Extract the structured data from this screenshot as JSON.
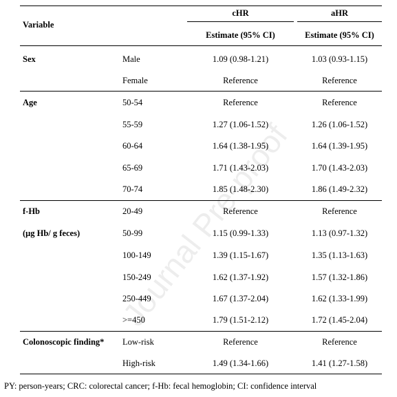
{
  "table": {
    "header": {
      "variable": "Variable",
      "chr": "cHR",
      "ahr": "aHR",
      "estimate_chr": "Estimate (95% CI)",
      "estimate_ahr": "Estimate (95% CI)"
    },
    "rows": [
      {
        "variable": "Sex",
        "level": "Male",
        "chr": "1.09 (0.98-1.21)",
        "ahr": "1.03 (0.93-1.15)"
      },
      {
        "variable": "",
        "level": "Female",
        "chr": "Reference",
        "ahr": "Reference"
      },
      {
        "variable": "Age",
        "level": "50-54",
        "chr": "Reference",
        "ahr": "Reference"
      },
      {
        "variable": "",
        "level": "55-59",
        "chr": "1.27 (1.06-1.52)",
        "ahr": "1.26 (1.06-1.52)"
      },
      {
        "variable": "",
        "level": "60-64",
        "chr": "1.64 (1.38-1.95)",
        "ahr": "1.64 (1.39-1.95)"
      },
      {
        "variable": "",
        "level": "65-69",
        "chr": "1.71 (1.43-2.03)",
        "ahr": "1.70 (1.43-2.03)"
      },
      {
        "variable": "",
        "level": "70-74",
        "chr": "1.85 (1.48-2.30)",
        "ahr": "1.86 (1.49-2.32)"
      },
      {
        "variable": "f-Hb",
        "level": "20-49",
        "chr": "Reference",
        "ahr": "Reference"
      },
      {
        "variable": "(μg Hb/ g feces)",
        "level": "50-99",
        "chr": "1.15 (0.99-1.33)",
        "ahr": "1.13 (0.97-1.32)"
      },
      {
        "variable": "",
        "level": "100-149",
        "chr": "1.39 (1.15-1.67)",
        "ahr": "1.35 (1.13-1.63)"
      },
      {
        "variable": "",
        "level": "150-249",
        "chr": "1.62 (1.37-1.92)",
        "ahr": "1.57 (1.32-1.86)"
      },
      {
        "variable": "",
        "level": "250-449",
        "chr": "1.67 (1.37-2.04)",
        "ahr": "1.62 (1.33-1.99)"
      },
      {
        "variable": "",
        "level": ">=450",
        "chr": "1.79 (1.51-2.12)",
        "ahr": "1.72 (1.45-2.04)"
      },
      {
        "variable": "Colonoscopic finding*",
        "level": "Low-risk",
        "chr": "Reference",
        "ahr": "Reference"
      },
      {
        "variable": "",
        "level": "High-risk",
        "chr": "1.49 (1.34-1.66)",
        "ahr": "1.41 (1.27-1.58)"
      }
    ]
  },
  "footnote": "PY: person-years; CRC: colorectal cancer; f-Hb: fecal hemoglobin; CI: confidence interval",
  "watermark": "Journal Pre-proof"
}
